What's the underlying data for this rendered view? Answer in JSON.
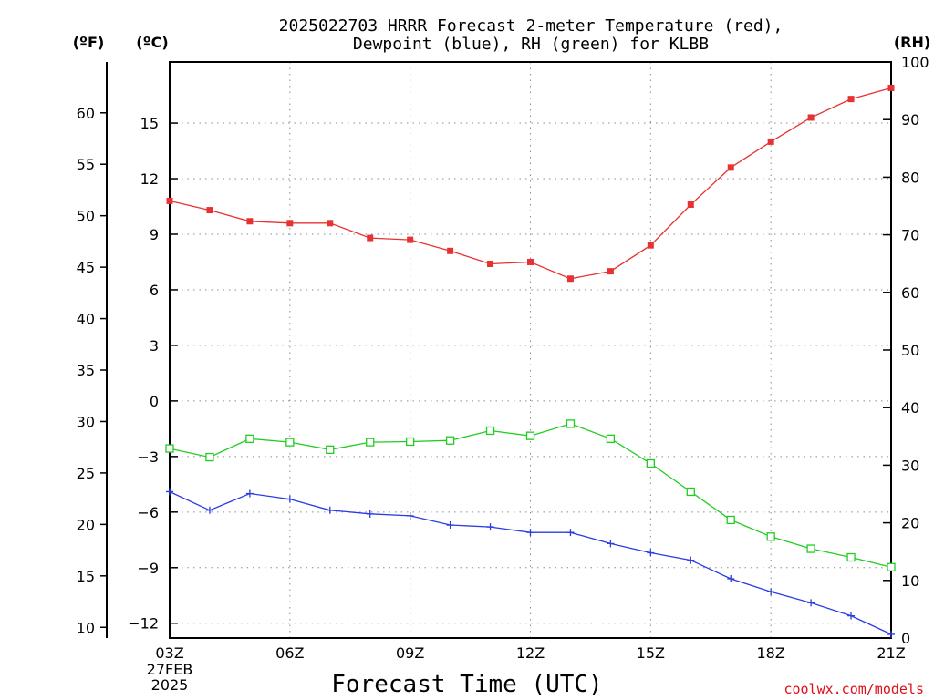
{
  "chart_data": {
    "type": "line",
    "title_line1": "2025022703 HRRR Forecast 2-meter Temperature (red),",
    "title_line2": "Dewpoint (blue), RH (green) for KLBB",
    "xlabel": "Forecast Time (UTC)",
    "credit": "coolwx.com/models",
    "units": {
      "fahrenheit": "(ºF)",
      "celsius": "(ºC)",
      "rh": "(RH)"
    },
    "x_ticks": [
      {
        "hour": 0,
        "label": "03Z"
      },
      {
        "hour": 3,
        "label": "06Z"
      },
      {
        "hour": 6,
        "label": "09Z"
      },
      {
        "hour": 9,
        "label": "12Z"
      },
      {
        "hour": 12,
        "label": "15Z"
      },
      {
        "hour": 15,
        "label": "18Z"
      },
      {
        "hour": 18,
        "label": "21Z"
      }
    ],
    "date_label": [
      "27FEB",
      "2025"
    ],
    "x_hours": [
      0,
      1,
      2,
      3,
      4,
      5,
      6,
      7,
      8,
      9,
      10,
      11,
      12,
      13,
      14,
      15,
      16,
      17,
      18
    ],
    "xlim": [
      0,
      18
    ],
    "celsius_axis": {
      "ylim": [
        -12.8,
        18.3
      ],
      "ticks": [
        -12,
        -9,
        -6,
        -3,
        0,
        3,
        6,
        9,
        12,
        15
      ],
      "tick_labels": [
        "−12",
        "−9",
        "−6",
        "−3",
        "0",
        "3",
        "6",
        "9",
        "12",
        "15"
      ]
    },
    "fahrenheit_axis": {
      "ticks": [
        10,
        15,
        20,
        25,
        30,
        35,
        40,
        45,
        50,
        55,
        60
      ],
      "tick_labels": [
        "10",
        "15",
        "20",
        "25",
        "30",
        "35",
        "40",
        "45",
        "50",
        "55",
        "60"
      ]
    },
    "rh_axis": {
      "ylim": [
        0,
        100
      ],
      "ticks": [
        0,
        10,
        20,
        30,
        40,
        50,
        60,
        70,
        80,
        90,
        100
      ],
      "tick_labels": [
        "0",
        "10",
        "20",
        "30",
        "40",
        "50",
        "60",
        "70",
        "80",
        "90",
        "100"
      ]
    },
    "series": [
      {
        "name": "Temperature",
        "axis": "celsius",
        "color": "#e63232",
        "marker": "filled-square",
        "values": [
          10.8,
          10.3,
          9.7,
          9.6,
          9.6,
          8.8,
          8.7,
          8.1,
          7.4,
          7.5,
          6.6,
          7.0,
          8.4,
          10.6,
          12.6,
          14.0,
          15.3,
          16.3,
          16.9
        ]
      },
      {
        "name": "Dewpoint",
        "axis": "celsius",
        "color": "#2b3ce0",
        "marker": "plus",
        "values": [
          -4.9,
          -5.9,
          -5.0,
          -5.3,
          -5.9,
          -6.1,
          -6.2,
          -6.7,
          -6.8,
          -7.1,
          -7.1,
          -7.7,
          -8.2,
          -8.6,
          -9.6,
          -10.3,
          -10.9,
          -11.6,
          -12.6
        ]
      },
      {
        "name": "RH",
        "axis": "rh",
        "color": "#22cc22",
        "marker": "open-square",
        "values": [
          32.9,
          31.4,
          34.6,
          34.0,
          32.7,
          34.0,
          34.1,
          34.3,
          36.0,
          35.1,
          37.2,
          34.6,
          30.3,
          25.4,
          20.5,
          17.6,
          15.5,
          14.0,
          12.3
        ]
      }
    ]
  }
}
